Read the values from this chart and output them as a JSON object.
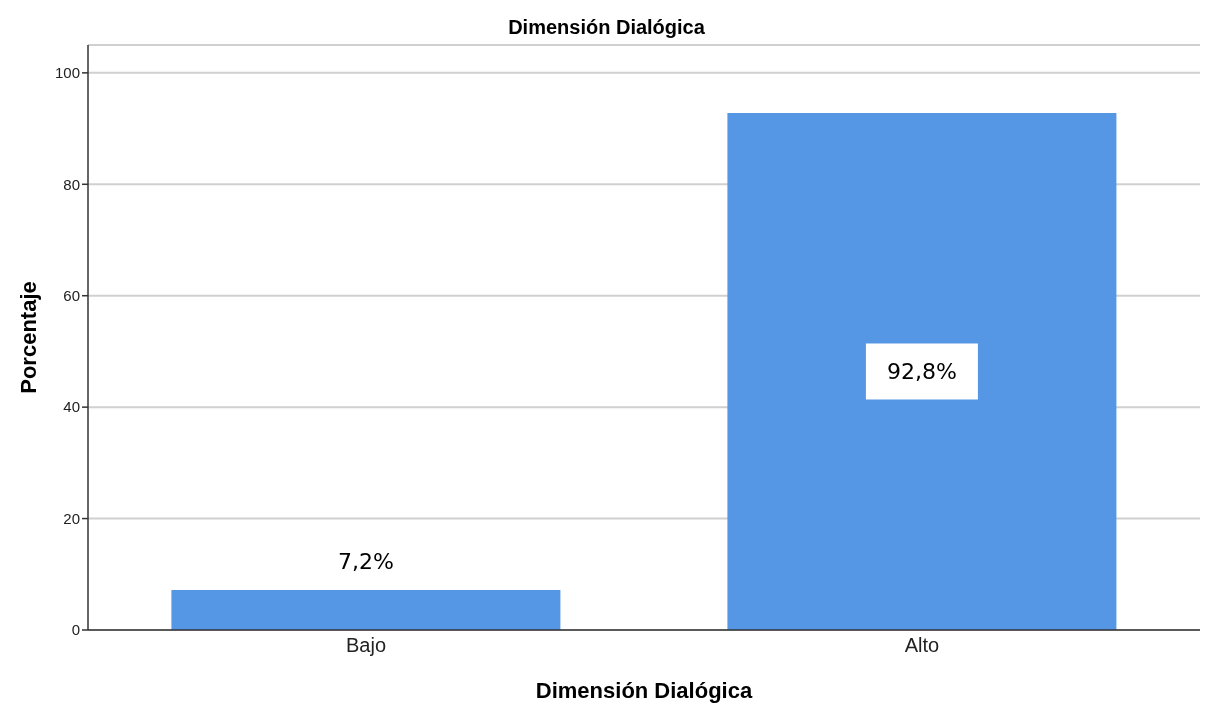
{
  "chart_data": {
    "type": "bar",
    "title": "Dimensión Dialógica",
    "xlabel": "Dimensión Dialógica",
    "ylabel": "Porcentaje",
    "categories": [
      "Bajo",
      "Alto"
    ],
    "values": [
      7.2,
      92.8
    ],
    "value_labels": [
      "7,2%",
      "92,8%"
    ],
    "color": "#5596e5",
    "ylim": [
      0,
      105
    ],
    "yticks": [
      0,
      20,
      40,
      60,
      80,
      100
    ],
    "grid": "y"
  }
}
